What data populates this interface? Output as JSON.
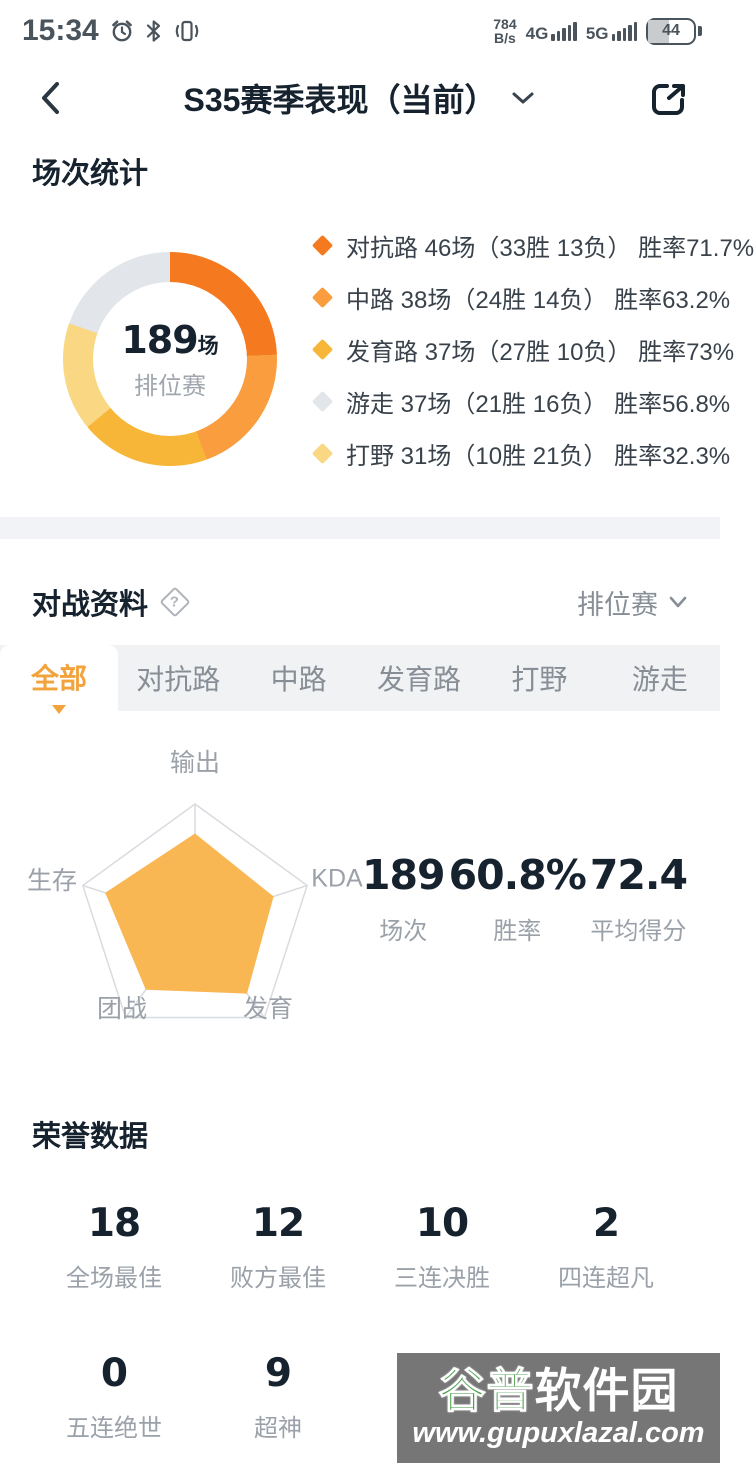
{
  "status_bar": {
    "time": "15:34",
    "net_speed_value": "784",
    "net_speed_unit": "B/s",
    "net1_label": "4G",
    "net2_label": "5G",
    "battery_percent": "44"
  },
  "header": {
    "title": "S35赛季表现（当前）"
  },
  "sections": {
    "match_stats": {
      "title": "场次统计",
      "donut_center": {
        "value": "189",
        "unit": "场",
        "label": "排位赛"
      },
      "legend": [
        {
          "text": "对抗路 46场（33胜 13负） 胜率71.7%",
          "color": "#F5791E"
        },
        {
          "text": "中路 38场（24胜 14负） 胜率63.2%",
          "color": "#F99D3E"
        },
        {
          "text": "发育路 37场（27胜 10负） 胜率73%",
          "color": "#F7B637"
        },
        {
          "text": "游走 37场（21胜 16负） 胜率56.8%",
          "color": "#E2E5E9"
        },
        {
          "text": "打野 31场（10胜 21负） 胜率32.3%",
          "color": "#FAD883"
        }
      ]
    },
    "battle_info": {
      "title": "对战资料",
      "help_glyph": "?",
      "mode": "排位赛",
      "tabs": [
        {
          "label": "全部",
          "active": true
        },
        {
          "label": "对抗路",
          "active": false
        },
        {
          "label": "中路",
          "active": false
        },
        {
          "label": "发育路",
          "active": false
        },
        {
          "label": "打野",
          "active": false
        },
        {
          "label": "游走",
          "active": false
        }
      ],
      "summary": [
        {
          "value": "189",
          "label": "场次"
        },
        {
          "value": "60.8%",
          "label": "胜率"
        },
        {
          "value": "72.4",
          "label": "平均得分"
        }
      ]
    },
    "honor": {
      "title": "荣誉数据",
      "items": [
        {
          "value": "18",
          "label": "全场最佳"
        },
        {
          "value": "12",
          "label": "败方最佳"
        },
        {
          "value": "10",
          "label": "三连决胜"
        },
        {
          "value": "2",
          "label": "四连超凡"
        },
        {
          "value": "0",
          "label": "五连绝世"
        },
        {
          "value": "9",
          "label": "超神"
        }
      ]
    }
  },
  "watermark": {
    "brand_green": "谷普",
    "brand_white": "软件园",
    "url": "www.gupuxlazal.com"
  },
  "chart_data": [
    {
      "type": "pie",
      "title": "场次统计",
      "total": 189,
      "unit": "场",
      "center_label": "排位赛",
      "segments": [
        {
          "name": "对抗路",
          "value": 46,
          "wins": 33,
          "losses": 13,
          "win_rate": 71.7,
          "color": "#F5791E"
        },
        {
          "name": "中路",
          "value": 38,
          "wins": 24,
          "losses": 14,
          "win_rate": 63.2,
          "color": "#F99D3E"
        },
        {
          "name": "发育路",
          "value": 37,
          "wins": 27,
          "losses": 10,
          "win_rate": 73.0,
          "color": "#F7B637"
        },
        {
          "name": "打野",
          "value": 31,
          "wins": 10,
          "losses": 21,
          "win_rate": 32.3,
          "color": "#FAD883"
        },
        {
          "name": "游走",
          "value": 37,
          "wins": 21,
          "losses": 16,
          "win_rate": 56.8,
          "color": "#E2E5E9"
        }
      ],
      "start_angle_deg": 0,
      "clockwise": true,
      "legend_position": "right",
      "donut_hole_ratio": 0.72
    },
    {
      "type": "radar",
      "axes": [
        "输出",
        "KDA",
        "发育",
        "团战",
        "生存"
      ],
      "values": [
        0.75,
        0.7,
        0.75,
        0.71,
        0.8
      ],
      "max": 1,
      "fill_color": "#F9B754",
      "outline_color": "#D8DBDF",
      "grid": "pentagon-outline-with-spokes",
      "legend_position": "none"
    }
  ]
}
